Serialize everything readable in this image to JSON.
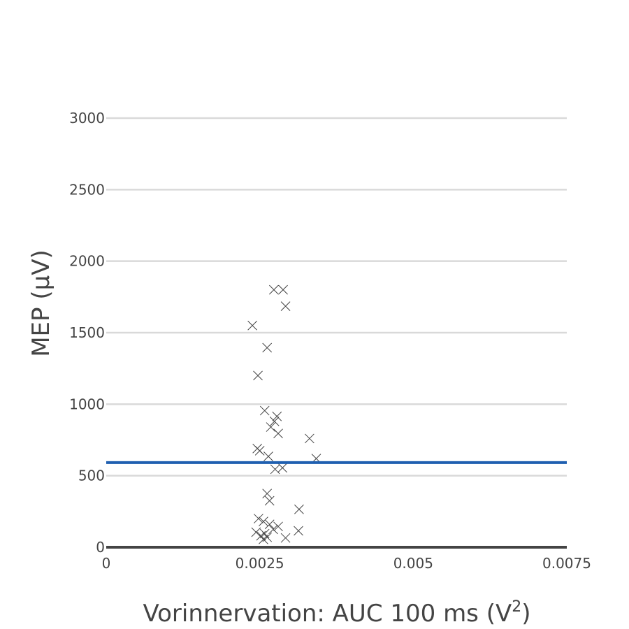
{
  "chart_data": {
    "type": "scatter",
    "title": "",
    "xlabel": "Vorinnervation: AUC 100 ms (V",
    "xlabel_superscript": "2",
    "xlabel_suffix": ")",
    "ylabel": "MEP (µV)",
    "xlim": [
      0,
      0.0075
    ],
    "ylim": [
      0,
      3000
    ],
    "x_ticks": [
      0,
      0.0025,
      0.005,
      0.0075
    ],
    "x_tick_labels": [
      "0",
      "0.0025",
      "0.005",
      "0.0075"
    ],
    "y_ticks": [
      0,
      500,
      1000,
      1500,
      2000,
      2500,
      3000
    ],
    "y_tick_labels": [
      "0",
      "500",
      "1000",
      "1500",
      "2000",
      "2500",
      "3000"
    ],
    "grid": true,
    "marker": "x",
    "marker_color": "#444444",
    "reference_line": {
      "y": 592,
      "color": "#1f5fb0"
    },
    "points": [
      {
        "x": 0.00238,
        "y": 1550
      },
      {
        "x": 0.00247,
        "y": 1200
      },
      {
        "x": 0.00262,
        "y": 1395
      },
      {
        "x": 0.00273,
        "y": 1800
      },
      {
        "x": 0.00288,
        "y": 1800
      },
      {
        "x": 0.00292,
        "y": 1685
      },
      {
        "x": 0.00258,
        "y": 955
      },
      {
        "x": 0.00278,
        "y": 915
      },
      {
        "x": 0.00274,
        "y": 880
      },
      {
        "x": 0.00268,
        "y": 840
      },
      {
        "x": 0.0028,
        "y": 795
      },
      {
        "x": 0.00331,
        "y": 760
      },
      {
        "x": 0.00246,
        "y": 690
      },
      {
        "x": 0.0025,
        "y": 675
      },
      {
        "x": 0.00264,
        "y": 635
      },
      {
        "x": 0.00342,
        "y": 620
      },
      {
        "x": 0.00275,
        "y": 545
      },
      {
        "x": 0.00287,
        "y": 555
      },
      {
        "x": 0.00262,
        "y": 375
      },
      {
        "x": 0.00266,
        "y": 325
      },
      {
        "x": 0.00314,
        "y": 265
      },
      {
        "x": 0.00248,
        "y": 200
      },
      {
        "x": 0.00256,
        "y": 180
      },
      {
        "x": 0.00266,
        "y": 160
      },
      {
        "x": 0.0028,
        "y": 145
      },
      {
        "x": 0.00272,
        "y": 125
      },
      {
        "x": 0.00313,
        "y": 115
      },
      {
        "x": 0.00244,
        "y": 105
      },
      {
        "x": 0.00258,
        "y": 95
      },
      {
        "x": 0.00252,
        "y": 80
      },
      {
        "x": 0.00262,
        "y": 70
      },
      {
        "x": 0.00292,
        "y": 65
      },
      {
        "x": 0.00256,
        "y": 55
      }
    ]
  }
}
